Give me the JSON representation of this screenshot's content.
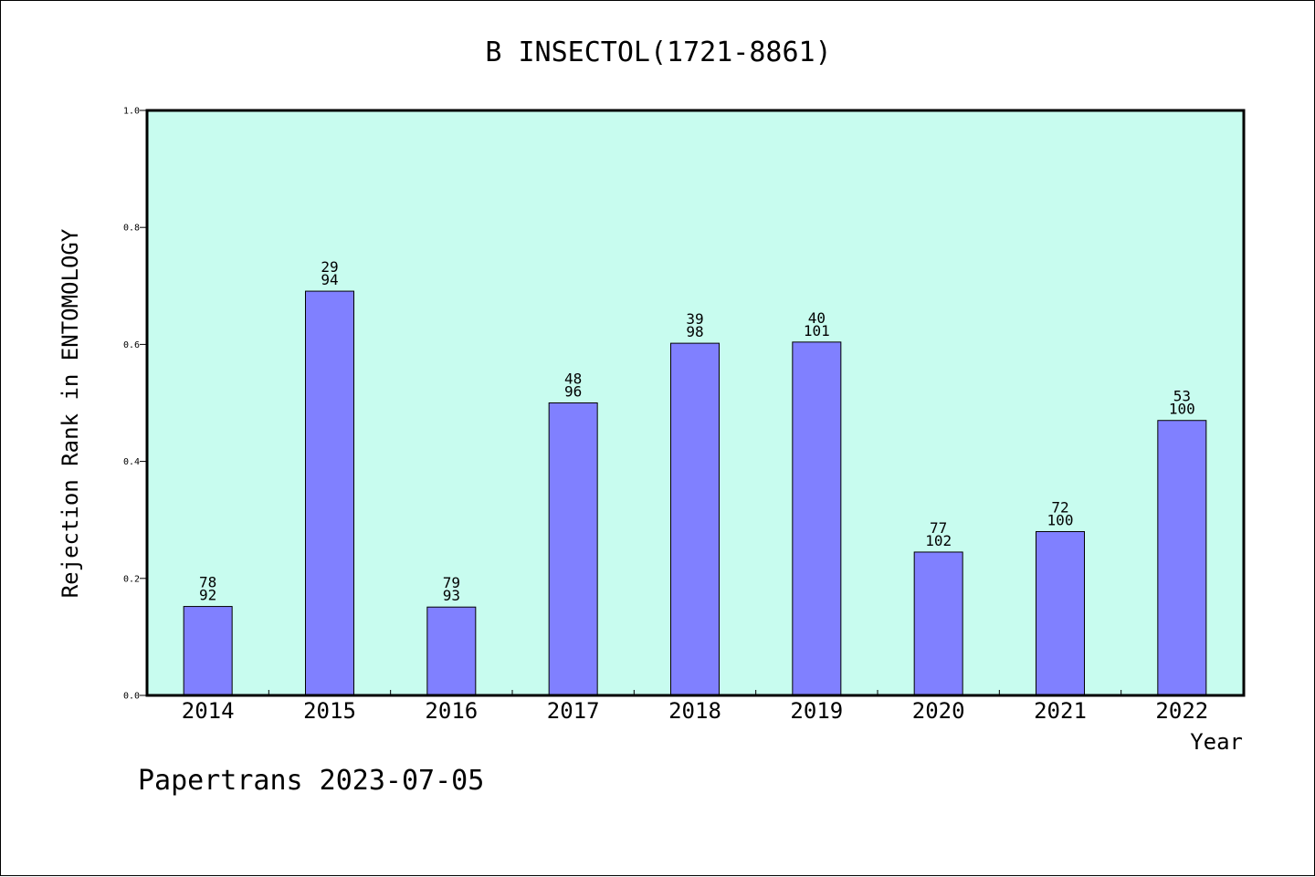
{
  "chart_data": {
    "type": "bar",
    "title": "B INSECTOL(1721-8861)",
    "xlabel": "Year",
    "ylabel": "Rejection Rank in ENTOMOLOGY",
    "ylim": [
      0,
      1.0
    ],
    "yticks": [
      "0.0",
      "0.2",
      "0.4",
      "0.6",
      "0.8",
      "1.0"
    ],
    "categories": [
      "2014",
      "2015",
      "2016",
      "2017",
      "2018",
      "2019",
      "2020",
      "2021",
      "2022"
    ],
    "values": [
      0.152,
      0.691,
      0.151,
      0.5,
      0.602,
      0.604,
      0.245,
      0.28,
      0.47
    ],
    "labels_top": [
      "78",
      "29",
      "79",
      "48",
      "39",
      "40",
      "77",
      "72",
      "53"
    ],
    "labels_bottom": [
      "92",
      "94",
      "93",
      "96",
      "98",
      "101",
      "102",
      "100",
      "100"
    ],
    "grid": false,
    "legend": "none",
    "colors": {
      "plot_background": "#c8fcef",
      "bar_fill": "#8080ff",
      "bar_stroke": "#000000"
    }
  },
  "footer": "Papertrans 2023-07-05"
}
